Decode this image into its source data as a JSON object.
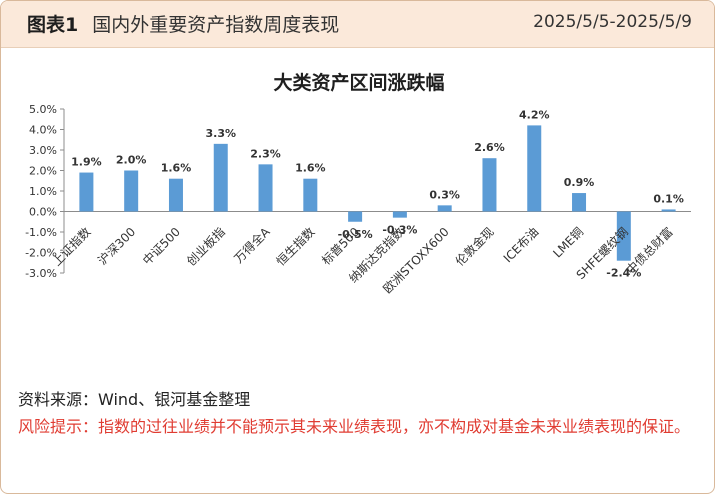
{
  "header": {
    "figure_label": "图表1",
    "title": "国内外重要资产指数周度表现",
    "date_range": "2025/5/5-2025/5/9"
  },
  "chart_data": {
    "type": "bar",
    "title": "大类资产区间涨跌幅",
    "categories": [
      "上证指数",
      "沪深300",
      "中证500",
      "创业板指",
      "万得全A",
      "恒生指数",
      "标普500",
      "纳斯达克指数",
      "欧洲STOXX600",
      "伦敦金现",
      "ICE布油",
      "LME铜",
      "SHFE螺纹钢",
      "中债总财富"
    ],
    "values": [
      1.9,
      2.0,
      1.6,
      3.3,
      2.3,
      1.6,
      -0.5,
      -0.3,
      0.3,
      2.6,
      4.2,
      0.9,
      -2.4,
      0.1
    ],
    "data_labels": [
      "1.9%",
      "2.0%",
      "1.6%",
      "3.3%",
      "2.3%",
      "1.6%",
      "-0.5%",
      "-0.3%",
      "0.3%",
      "2.6%",
      "4.2%",
      "0.9%",
      "-2.4%",
      "0.1%"
    ],
    "yticks": [
      "5.0%",
      "4.0%",
      "3.0%",
      "2.0%",
      "1.0%",
      "0.0%",
      "-1.0%",
      "-2.0%",
      "-3.0%"
    ],
    "ylim": [
      -3.0,
      5.0
    ],
    "xlabel": "",
    "ylabel": "",
    "grid": false,
    "legend": "none",
    "bar_color": "#5b9bd5"
  },
  "footer": {
    "source": "资料来源：Wind、银河基金整理",
    "risk_warning": "风险提示：指数的过往业绩并不能预示其未来业绩表现，亦不构成对基金未来业绩表现的保证。"
  },
  "colors": {
    "header_bg": "#fbe9da",
    "border": "#d9b99b",
    "risk_text": "#e03c32"
  }
}
